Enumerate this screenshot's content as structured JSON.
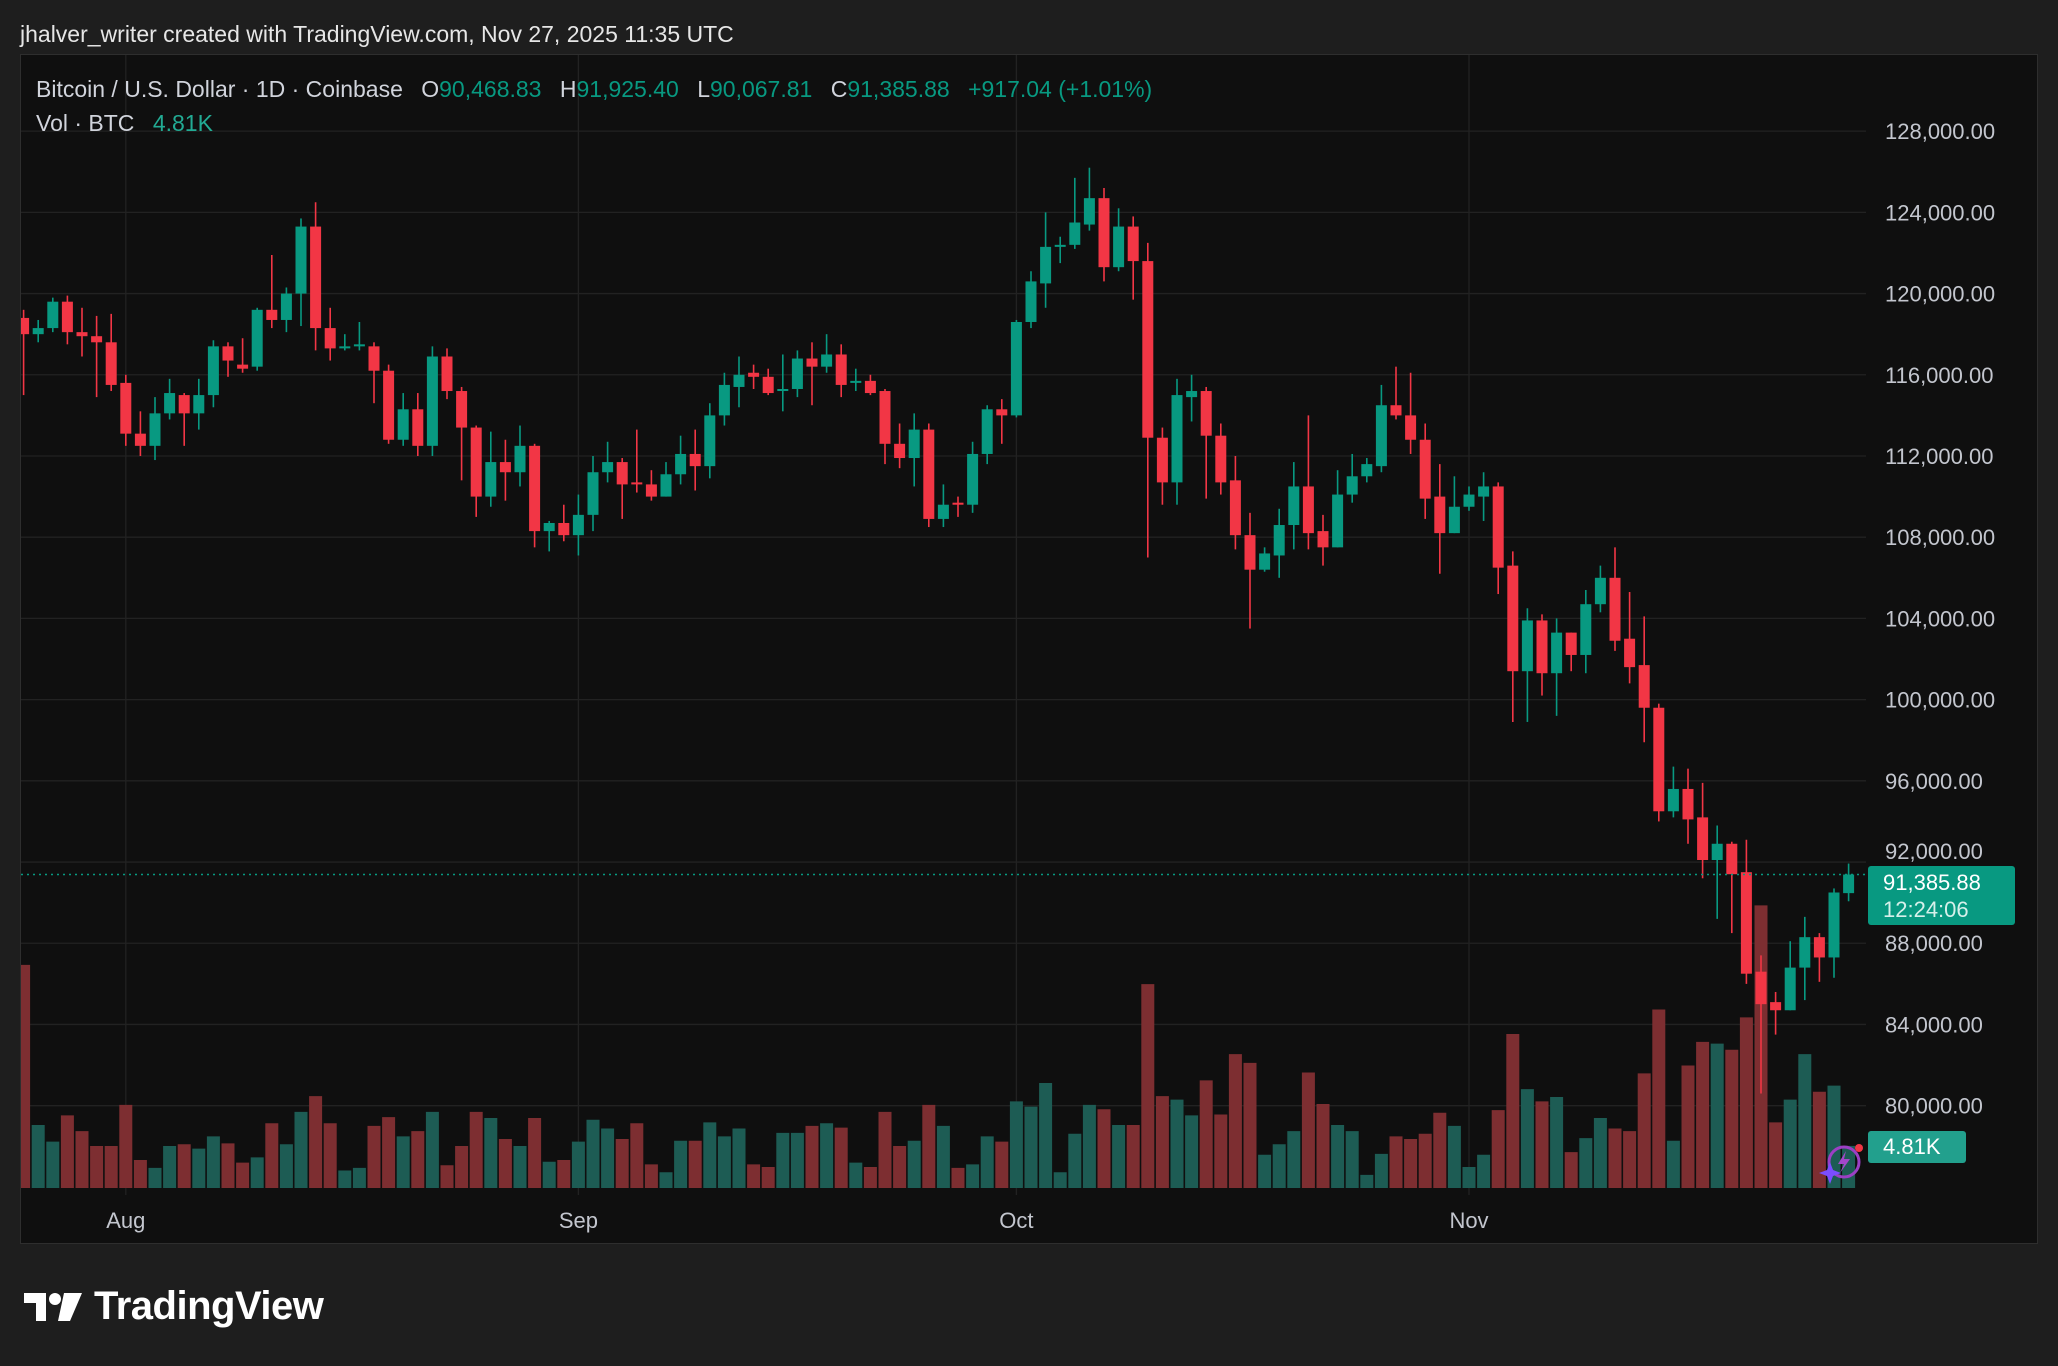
{
  "header": {
    "caption": "jhalver_writer created with TradingView.com, Nov 27, 2025 11:35 UTC"
  },
  "legend": {
    "symbol": "Bitcoin / U.S. Dollar · 1D · Coinbase",
    "o_label": "O",
    "o": "90,468.83",
    "h_label": "H",
    "h": "91,925.40",
    "l_label": "L",
    "l": "90,067.81",
    "c_label": "C",
    "c": "91,385.88",
    "change": "+917.04 (+1.01%)",
    "vol_label": "Vol · BTC",
    "vol": "4.81K"
  },
  "last_price": {
    "price": "91,385.88",
    "countdown": "12:24:06",
    "volume": "4.81K"
  },
  "brand": {
    "logo_text": "TradingView"
  },
  "colors": {
    "up": "#089981",
    "down": "#f23645",
    "vol_up": "#1d5c54",
    "vol_down": "#7d2e31",
    "background": "#0f0f0f",
    "grid": "#222222",
    "axis_text": "#c3c6ce"
  },
  "icons": [
    "tradingview-logo-icon",
    "ai-assistant-icon"
  ],
  "chart_data": {
    "type": "candlestick",
    "title": "Bitcoin / U.S. Dollar · 1D · Coinbase",
    "ylim": [
      75600,
      131800
    ],
    "y_ticks": [
      80000,
      84000,
      88000,
      92000,
      96000,
      100000,
      104000,
      108000,
      112000,
      116000,
      120000,
      124000,
      128000
    ],
    "y_tick_labels": [
      "80,000.00",
      "84,000.00",
      "88,000.00",
      "92,000.00",
      "96,000.00",
      "100,000.00",
      "104,000.00",
      "108,000.00",
      "112,000.00",
      "116,000.00",
      "120,000.00",
      "124,000.00",
      "128,000.00"
    ],
    "x_ticks": [
      {
        "label": "Aug",
        "date": "2025-08-01"
      },
      {
        "label": "Sep",
        "date": "2025-09-01"
      },
      {
        "label": "Oct",
        "date": "2025-10-01"
      },
      {
        "label": "Nov",
        "date": "2025-11-01"
      }
    ],
    "grid": true,
    "last_price": 91385.88,
    "columns": [
      "date",
      "open",
      "high",
      "low",
      "close",
      "volume_k_btc"
    ],
    "candles": [
      [
        "2025-07-25",
        118800,
        119200,
        115000,
        118000,
        25.5
      ],
      [
        "2025-07-26",
        118000,
        118700,
        117600,
        118300,
        7.2
      ],
      [
        "2025-07-27",
        118300,
        119800,
        118100,
        119600,
        5.3
      ],
      [
        "2025-07-28",
        119600,
        119900,
        117500,
        118100,
        8.3
      ],
      [
        "2025-07-29",
        118100,
        119300,
        116900,
        117900,
        6.5
      ],
      [
        "2025-07-30",
        117900,
        118900,
        114900,
        117600,
        4.8
      ],
      [
        "2025-07-31",
        117600,
        119000,
        115200,
        115500,
        4.8
      ],
      [
        "2025-08-01",
        115600,
        116000,
        112500,
        113100,
        9.5
      ],
      [
        "2025-08-02",
        113100,
        114200,
        112000,
        112500,
        3.2
      ],
      [
        "2025-08-03",
        112500,
        114900,
        111800,
        114100,
        2.3
      ],
      [
        "2025-08-04",
        114100,
        115800,
        113800,
        115100,
        4.8
      ],
      [
        "2025-08-05",
        115000,
        115100,
        112500,
        114100,
        5.0
      ],
      [
        "2025-08-06",
        114100,
        115800,
        113300,
        115000,
        4.5
      ],
      [
        "2025-08-07",
        115000,
        117700,
        114400,
        117400,
        5.9
      ],
      [
        "2025-08-08",
        117400,
        117600,
        115900,
        116700,
        5.1
      ],
      [
        "2025-08-09",
        116500,
        117800,
        116100,
        116300,
        2.9
      ],
      [
        "2025-08-10",
        116400,
        119300,
        116200,
        119200,
        3.5
      ],
      [
        "2025-08-11",
        119200,
        121900,
        118300,
        118700,
        7.4
      ],
      [
        "2025-08-12",
        118700,
        120300,
        118100,
        120000,
        5.0
      ],
      [
        "2025-08-13",
        120000,
        123700,
        118400,
        123300,
        8.7
      ],
      [
        "2025-08-14",
        123300,
        124500,
        117200,
        118300,
        10.5
      ],
      [
        "2025-08-15",
        118300,
        119300,
        116700,
        117300,
        7.4
      ],
      [
        "2025-08-16",
        117400,
        118000,
        117200,
        117400,
        2.0
      ],
      [
        "2025-08-17",
        117400,
        118600,
        117200,
        117500,
        2.3
      ],
      [
        "2025-08-18",
        117400,
        117600,
        114600,
        116200,
        7.1
      ],
      [
        "2025-08-19",
        116200,
        116500,
        112600,
        112800,
        8.1
      ],
      [
        "2025-08-20",
        112800,
        115100,
        112500,
        114300,
        5.9
      ],
      [
        "2025-08-21",
        114300,
        115100,
        112000,
        112500,
        6.5
      ],
      [
        "2025-08-22",
        112500,
        117400,
        112000,
        116900,
        8.7
      ],
      [
        "2025-08-23",
        116900,
        117300,
        114800,
        115200,
        2.6
      ],
      [
        "2025-08-24",
        115200,
        115400,
        110800,
        113400,
        4.8
      ],
      [
        "2025-08-25",
        113400,
        113500,
        109000,
        110000,
        8.7
      ],
      [
        "2025-08-26",
        110000,
        113200,
        109500,
        111700,
        8.0
      ],
      [
        "2025-08-27",
        111700,
        112800,
        109800,
        111200,
        5.6
      ],
      [
        "2025-08-28",
        111200,
        113500,
        110500,
        112500,
        4.8
      ],
      [
        "2025-08-29",
        112500,
        112600,
        107500,
        108300,
        8.0
      ],
      [
        "2025-08-30",
        108300,
        108800,
        107300,
        108700,
        3.0
      ],
      [
        "2025-08-31",
        108700,
        109600,
        107800,
        108100,
        3.2
      ],
      [
        "2025-09-01",
        108100,
        110100,
        107100,
        109100,
        5.3
      ],
      [
        "2025-09-02",
        109100,
        112000,
        108300,
        111200,
        7.8
      ],
      [
        "2025-09-03",
        111200,
        112700,
        110700,
        111700,
        6.8
      ],
      [
        "2025-09-04",
        111700,
        111900,
        108900,
        110600,
        5.6
      ],
      [
        "2025-09-05",
        110700,
        113300,
        110200,
        110600,
        7.4
      ],
      [
        "2025-09-06",
        110600,
        111300,
        109800,
        110000,
        2.7
      ],
      [
        "2025-09-07",
        110000,
        111700,
        110000,
        111100,
        1.8
      ],
      [
        "2025-09-08",
        111100,
        113000,
        110600,
        112100,
        5.4
      ],
      [
        "2025-09-09",
        112100,
        113300,
        110300,
        111500,
        5.4
      ],
      [
        "2025-09-10",
        111500,
        114600,
        110900,
        114000,
        7.5
      ],
      [
        "2025-09-11",
        114000,
        116100,
        113500,
        115500,
        5.9
      ],
      [
        "2025-09-12",
        115400,
        116900,
        114400,
        116000,
        6.8
      ],
      [
        "2025-09-13",
        116100,
        116500,
        115300,
        115900,
        2.7
      ],
      [
        "2025-09-14",
        115900,
        116300,
        115000,
        115100,
        2.4
      ],
      [
        "2025-09-15",
        115200,
        117000,
        114200,
        115300,
        6.3
      ],
      [
        "2025-09-16",
        115300,
        117200,
        114900,
        116800,
        6.3
      ],
      [
        "2025-09-17",
        116800,
        117600,
        114500,
        116400,
        7.1
      ],
      [
        "2025-09-18",
        116400,
        118000,
        116100,
        117000,
        7.4
      ],
      [
        "2025-09-19",
        117000,
        117500,
        114900,
        115500,
        6.9
      ],
      [
        "2025-09-20",
        115600,
        116300,
        115200,
        115700,
        2.9
      ],
      [
        "2025-09-21",
        115700,
        116000,
        115000,
        115100,
        2.4
      ],
      [
        "2025-09-22",
        115200,
        115300,
        111600,
        112600,
        8.7
      ],
      [
        "2025-09-23",
        112600,
        113600,
        111400,
        111900,
        4.8
      ],
      [
        "2025-09-24",
        111900,
        114100,
        110500,
        113300,
        5.4
      ],
      [
        "2025-09-25",
        113300,
        113600,
        108500,
        108900,
        9.5
      ],
      [
        "2025-09-26",
        108900,
        110600,
        108500,
        109600,
        7.1
      ],
      [
        "2025-09-27",
        109700,
        110000,
        109000,
        109600,
        2.3
      ],
      [
        "2025-09-28",
        109600,
        112700,
        109200,
        112100,
        2.7
      ],
      [
        "2025-09-29",
        112100,
        114500,
        111600,
        114300,
        5.9
      ],
      [
        "2025-09-30",
        114300,
        114800,
        112600,
        114000,
        5.3
      ],
      [
        "2025-10-01",
        114000,
        118700,
        113900,
        118600,
        9.9
      ],
      [
        "2025-10-02",
        118600,
        121100,
        118300,
        120600,
        9.3
      ],
      [
        "2025-10-03",
        120500,
        124000,
        119300,
        122300,
        12.0
      ],
      [
        "2025-10-04",
        122300,
        122800,
        121500,
        122400,
        1.8
      ],
      [
        "2025-10-05",
        122400,
        125700,
        122200,
        123500,
        6.2
      ],
      [
        "2025-10-06",
        123400,
        126200,
        123100,
        124700,
        9.5
      ],
      [
        "2025-10-07",
        124700,
        125200,
        120600,
        121300,
        9.0
      ],
      [
        "2025-10-08",
        121300,
        124200,
        121100,
        123300,
        7.2
      ],
      [
        "2025-10-09",
        123300,
        123800,
        119700,
        121600,
        7.2
      ],
      [
        "2025-10-10",
        121600,
        122500,
        107000,
        112900,
        23.3
      ],
      [
        "2025-10-11",
        112900,
        113400,
        109600,
        110700,
        10.5
      ],
      [
        "2025-10-12",
        110700,
        115800,
        109600,
        115000,
        10.1
      ],
      [
        "2025-10-13",
        114900,
        116000,
        113700,
        115200,
        8.3
      ],
      [
        "2025-10-14",
        115200,
        115400,
        109900,
        113000,
        12.3
      ],
      [
        "2025-10-15",
        113000,
        113600,
        110100,
        110700,
        8.4
      ],
      [
        "2025-10-16",
        110800,
        112000,
        107400,
        108100,
        15.3
      ],
      [
        "2025-10-17",
        108100,
        109200,
        103500,
        106400,
        14.3
      ],
      [
        "2025-10-18",
        106400,
        107500,
        106300,
        107200,
        3.8
      ],
      [
        "2025-10-19",
        107100,
        109400,
        106000,
        108600,
        5.0
      ],
      [
        "2025-10-20",
        108600,
        111700,
        107400,
        110500,
        6.5
      ],
      [
        "2025-10-21",
        110500,
        114000,
        107400,
        108200,
        13.2
      ],
      [
        "2025-10-22",
        108300,
        109100,
        106600,
        107500,
        9.6
      ],
      [
        "2025-10-23",
        107500,
        111300,
        107500,
        110100,
        7.2
      ],
      [
        "2025-10-24",
        110100,
        112100,
        109700,
        111000,
        6.5
      ],
      [
        "2025-10-25",
        111000,
        111900,
        110700,
        111600,
        1.5
      ],
      [
        "2025-10-26",
        111500,
        115500,
        111200,
        114500,
        3.9
      ],
      [
        "2025-10-27",
        114500,
        116400,
        113800,
        114000,
        5.9
      ],
      [
        "2025-10-28",
        114000,
        116100,
        112100,
        112800,
        5.6
      ],
      [
        "2025-10-29",
        112800,
        113600,
        108900,
        109900,
        6.2
      ],
      [
        "2025-10-30",
        110000,
        111600,
        106200,
        108200,
        8.6
      ],
      [
        "2025-10-31",
        108200,
        111000,
        108200,
        109500,
        7.1
      ],
      [
        "2025-11-01",
        109500,
        110500,
        109300,
        110100,
        2.4
      ],
      [
        "2025-11-02",
        110000,
        111200,
        108800,
        110500,
        3.8
      ],
      [
        "2025-11-03",
        110500,
        110700,
        105200,
        106500,
        8.9
      ],
      [
        "2025-11-04",
        106600,
        107300,
        98900,
        101400,
        17.6
      ],
      [
        "2025-11-05",
        101400,
        104500,
        98900,
        103900,
        11.3
      ],
      [
        "2025-11-06",
        103900,
        104200,
        100200,
        101300,
        9.9
      ],
      [
        "2025-11-07",
        101300,
        104000,
        99200,
        103300,
        10.4
      ],
      [
        "2025-11-08",
        103300,
        103300,
        101400,
        102200,
        4.1
      ],
      [
        "2025-11-09",
        102200,
        105400,
        101300,
        104700,
        5.7
      ],
      [
        "2025-11-10",
        104700,
        106600,
        104300,
        106000,
        8.0
      ],
      [
        "2025-11-11",
        106000,
        107500,
        102400,
        102900,
        6.8
      ],
      [
        "2025-11-12",
        103000,
        105300,
        100800,
        101600,
        6.5
      ],
      [
        "2025-11-13",
        101700,
        104100,
        97900,
        99600,
        13.1
      ],
      [
        "2025-11-14",
        99600,
        99800,
        94000,
        94500,
        20.4
      ],
      [
        "2025-11-15",
        94500,
        96700,
        94200,
        95600,
        5.4
      ],
      [
        "2025-11-16",
        95600,
        96600,
        92900,
        94100,
        14.0
      ],
      [
        "2025-11-17",
        94200,
        95900,
        91200,
        92100,
        16.7
      ],
      [
        "2025-11-18",
        92100,
        93800,
        89200,
        92900,
        16.5
      ],
      [
        "2025-11-19",
        92900,
        93000,
        88500,
        91400,
        15.8
      ],
      [
        "2025-11-20",
        91500,
        93100,
        86000,
        86500,
        19.5
      ],
      [
        "2025-11-21",
        86600,
        87400,
        80600,
        85000,
        32.3
      ],
      [
        "2025-11-22",
        85100,
        85600,
        83500,
        84700,
        7.5
      ],
      [
        "2025-11-23",
        84700,
        88100,
        84700,
        86800,
        10.1
      ],
      [
        "2025-11-24",
        86800,
        89300,
        85200,
        88300,
        15.3
      ],
      [
        "2025-11-25",
        88300,
        88500,
        86100,
        87300,
        11.0
      ],
      [
        "2025-11-26",
        87300,
        90700,
        86300,
        90500,
        11.7
      ],
      [
        "2025-11-27",
        90468.83,
        91925.4,
        90067.81,
        91385.88,
        4.81
      ]
    ]
  }
}
